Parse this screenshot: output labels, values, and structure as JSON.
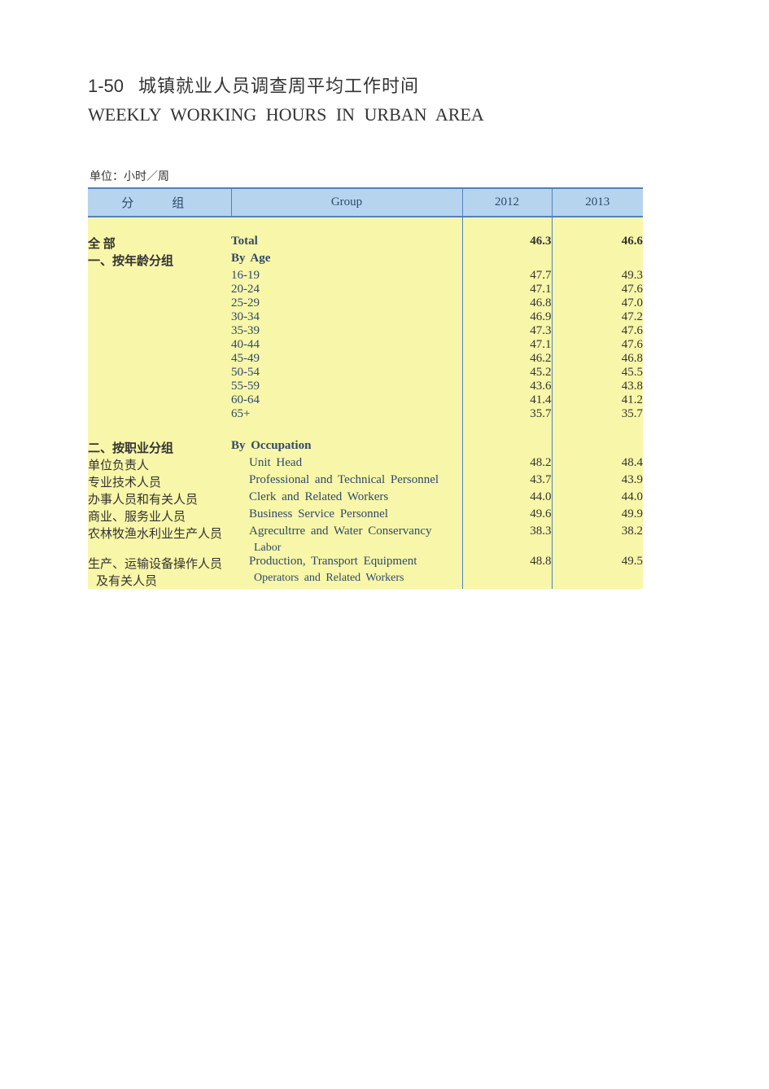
{
  "title": {
    "number": "1-50",
    "zh": "城镇就业人员调查周平均工作时间",
    "en": "WEEKLY  WORKING  HOURS  IN  URBAN  AREA"
  },
  "unit_label": "单位：小时／周",
  "table": {
    "header": {
      "group_zh": "分　组",
      "group_en": "Group",
      "year1": "2012",
      "year2": "2013"
    },
    "colors": {
      "header_bg": "#b7d4ee",
      "body_bg": "#f8f6a8",
      "border": "#4f81bd",
      "en_text": "#2e4a6b",
      "text": "#333333"
    },
    "rows": [
      {
        "type": "spacer"
      },
      {
        "type": "bold",
        "cn": "全  部",
        "en": "Total",
        "v1": "46.3",
        "v2": "46.6"
      },
      {
        "type": "sect",
        "cn": "一、按年龄分组",
        "en": "By  Age"
      },
      {
        "type": "data",
        "cn": "",
        "en": "16-19",
        "v1": "47.7",
        "v2": "49.3"
      },
      {
        "type": "data",
        "cn": "",
        "en": "20-24",
        "v1": "47.1",
        "v2": "47.6"
      },
      {
        "type": "data",
        "cn": "",
        "en": "25-29",
        "v1": "46.8",
        "v2": "47.0"
      },
      {
        "type": "data",
        "cn": "",
        "en": "30-34",
        "v1": "46.9",
        "v2": "47.2"
      },
      {
        "type": "data",
        "cn": "",
        "en": "35-39",
        "v1": "47.3",
        "v2": "47.6"
      },
      {
        "type": "data",
        "cn": "",
        "en": "40-44",
        "v1": "47.1",
        "v2": "47.6"
      },
      {
        "type": "data",
        "cn": "",
        "en": "45-49",
        "v1": "46.2",
        "v2": "46.8"
      },
      {
        "type": "data",
        "cn": "",
        "en": "50-54",
        "v1": "45.2",
        "v2": "45.5"
      },
      {
        "type": "data",
        "cn": "",
        "en": "55-59",
        "v1": "43.6",
        "v2": "43.8"
      },
      {
        "type": "data",
        "cn": "",
        "en": "60-64",
        "v1": "41.4",
        "v2": "41.2"
      },
      {
        "type": "data",
        "cn": "",
        "en": "65+",
        "v1": "35.7",
        "v2": "35.7"
      },
      {
        "type": "spacer"
      },
      {
        "type": "sect",
        "cn": "二、按职业分组",
        "en": "By  Occupation"
      },
      {
        "type": "sub",
        "cn": "单位负责人",
        "en": "Unit  Head",
        "v1": "48.2",
        "v2": "48.4"
      },
      {
        "type": "sub",
        "cn": "专业技术人员",
        "en": "Professional  and  Technical  Personnel",
        "v1": "43.7",
        "v2": "43.9"
      },
      {
        "type": "sub",
        "cn": "办事人员和有关人员",
        "en": "Clerk  and  Related  Workers",
        "v1": "44.0",
        "v2": "44.0"
      },
      {
        "type": "sub",
        "cn": "商业、服务业人员",
        "en": "Business  Service  Personnel",
        "v1": "49.6",
        "v2": "49.9"
      },
      {
        "type": "sub",
        "cn": "农林牧渔水利业生产人员",
        "en": "Agrecultrre  and  Water  Conservancy",
        "v1": "38.3",
        "v2": "38.2"
      },
      {
        "type": "sub2",
        "cn": "",
        "en": "Labor"
      },
      {
        "type": "sub",
        "cn": "生产、运输设备操作人员",
        "en": "Production,  Transport  Equipment",
        "v1": "48.8",
        "v2": "49.5"
      },
      {
        "type": "sub2",
        "cn": "  及有关人员",
        "en": "Operators  and  Related  Workers"
      }
    ]
  }
}
